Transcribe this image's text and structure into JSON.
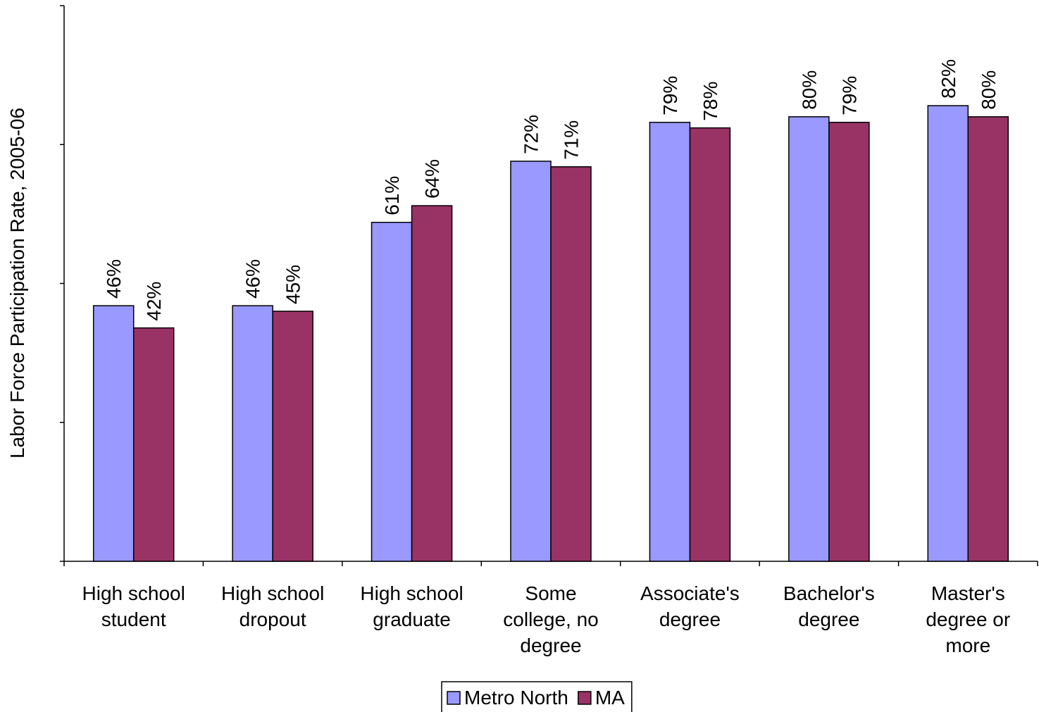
{
  "chart_data": {
    "type": "bar",
    "title": "",
    "xlabel": "",
    "ylabel": "Labor Force Participation Rate, 2005-06",
    "ylim": [
      0,
      100
    ],
    "grid": false,
    "legend_position": "bottom-center",
    "categories": [
      [
        "High school",
        "student"
      ],
      [
        "High school",
        "dropout"
      ],
      [
        "High school",
        "graduate"
      ],
      [
        "Some",
        "college, no",
        "degree"
      ],
      [
        "Associate's",
        "degree"
      ],
      [
        "Bachelor's",
        "degree"
      ],
      [
        "Master's",
        "degree or",
        "more"
      ]
    ],
    "series": [
      {
        "name": "Metro North",
        "color": "#9999ff",
        "values": [
          46,
          46,
          61,
          72,
          79,
          80,
          82
        ],
        "labels": [
          "46%",
          "46%",
          "61%",
          "72%",
          "79%",
          "80%",
          "82%"
        ]
      },
      {
        "name": "MA",
        "color": "#993366",
        "values": [
          42,
          45,
          64,
          71,
          78,
          79,
          80
        ],
        "labels": [
          "42%",
          "45%",
          "64%",
          "71%",
          "78%",
          "79%",
          "80%"
        ]
      }
    ]
  }
}
